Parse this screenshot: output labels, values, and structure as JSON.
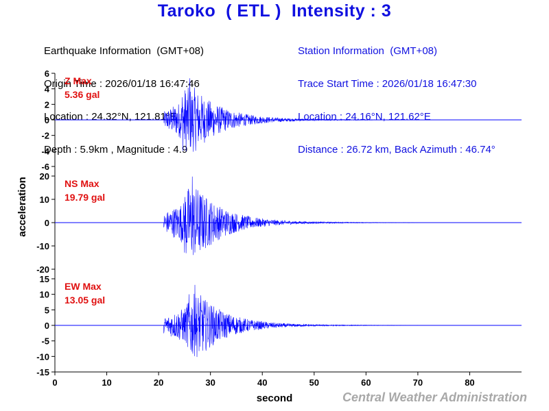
{
  "title": "Taroko  ( ETL )  Intensity : 3",
  "earthquake_info": {
    "heading": "Earthquake Information  (GMT+08)",
    "origin_time": "Origin Time : 2026/01/18 16:47:46",
    "location": "Location : 24.32°N, 121.81°E",
    "depth_magnitude": "Depth : 5.9km , Magnitude : 4.9"
  },
  "station_info": {
    "heading": "Station Information  (GMT+08)",
    "trace_start": "Trace Start Time : 2026/01/18 16:47:30",
    "location": "Location : 24.16°N, 121.62°E",
    "distance": "Distance : 26.72 km, Back Azimuth : 46.74°"
  },
  "credit": "Central Weather Administration",
  "colors": {
    "trace": "#0000ff",
    "axis": "#000000",
    "label": "#e01010",
    "title": "#1010e0"
  },
  "chart_data": {
    "type": "line",
    "xlabel": "second",
    "ylabel": "acceleration",
    "xlim": [
      0,
      90
    ],
    "xticks": [
      0,
      10,
      20,
      30,
      40,
      50,
      60,
      70,
      80
    ],
    "grid": false,
    "signal_onset_s": 21,
    "signal_end_s": 90,
    "panels": [
      {
        "component": "Z",
        "label": "Z Max",
        "max_label": "5.36 gal",
        "peak": 5.36,
        "peak_time_s": 26,
        "ylim": [
          -6,
          6
        ],
        "yticks": [
          6,
          4,
          2,
          0,
          -2,
          -4,
          -6
        ]
      },
      {
        "component": "NS",
        "label": "NS Max",
        "max_label": "19.79 gal",
        "peak": 19.79,
        "peak_time_s": 26.5,
        "ylim": [
          -20,
          20
        ],
        "yticks": [
          20,
          10,
          0,
          -10,
          -20
        ]
      },
      {
        "component": "EW",
        "label": "EW Max",
        "max_label": "13.05 gal",
        "peak": 13.05,
        "peak_time_s": 27,
        "ylim": [
          -15,
          15
        ],
        "yticks": [
          15,
          10,
          5,
          0,
          -5,
          -10,
          -15
        ]
      }
    ]
  }
}
